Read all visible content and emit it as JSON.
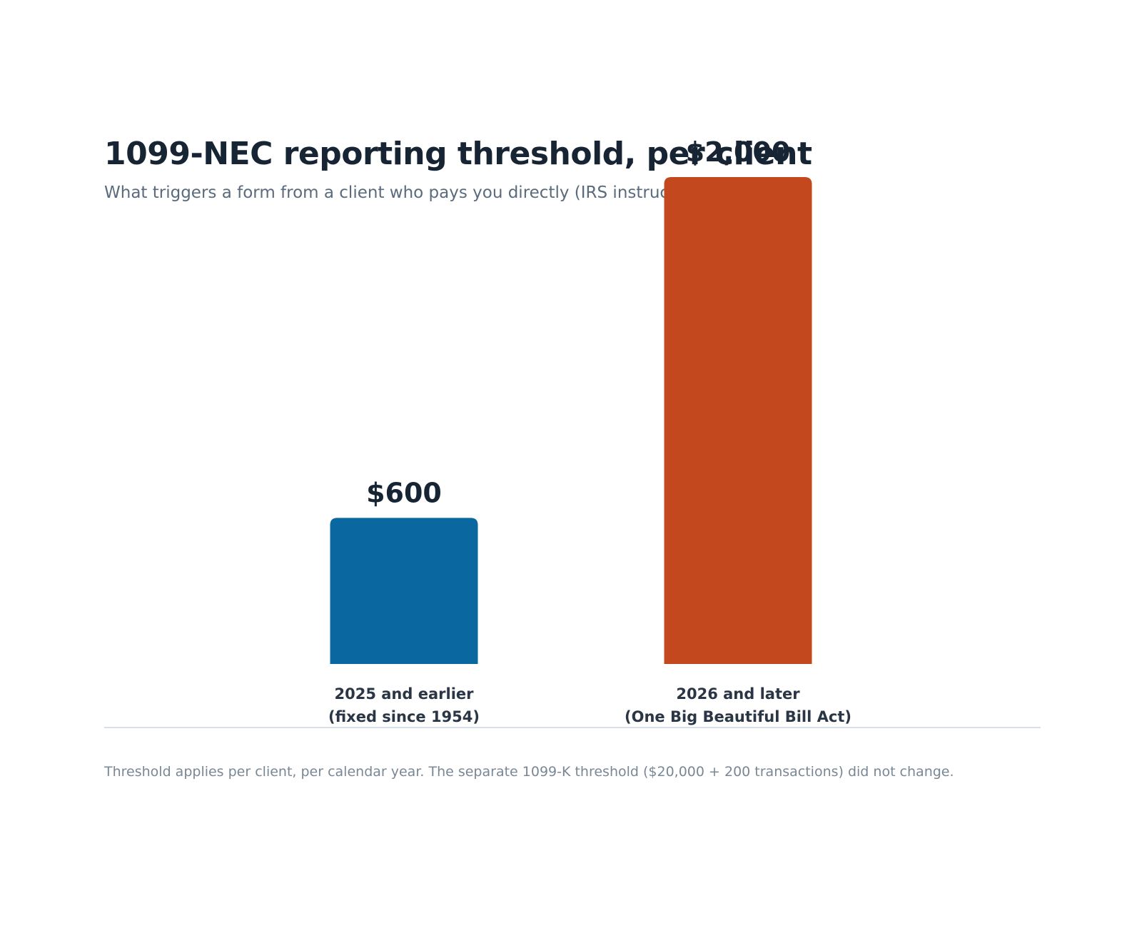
{
  "chart_data": {
    "type": "bar",
    "title": "1099-NEC reporting threshold, per client",
    "subtitle": "What triggers a form from a client who pays you directly (IRS instructio",
    "categories": [
      [
        "2025 and earlier",
        "(fixed since 1954)"
      ],
      [
        "2026 and later",
        "(One Big Beautiful Bill Act)"
      ]
    ],
    "values": [
      600,
      2000
    ],
    "value_labels": [
      "$600",
      "$2,000"
    ],
    "colors": [
      "#0a67a0",
      "#c4481e"
    ],
    "xlabel": "",
    "ylabel": "",
    "ylim": [
      0,
      2000
    ],
    "grid": false,
    "footnote": "Threshold applies per client, per calendar year. The separate 1099-K threshold ($20,000 + 200 transactions) did not change."
  }
}
